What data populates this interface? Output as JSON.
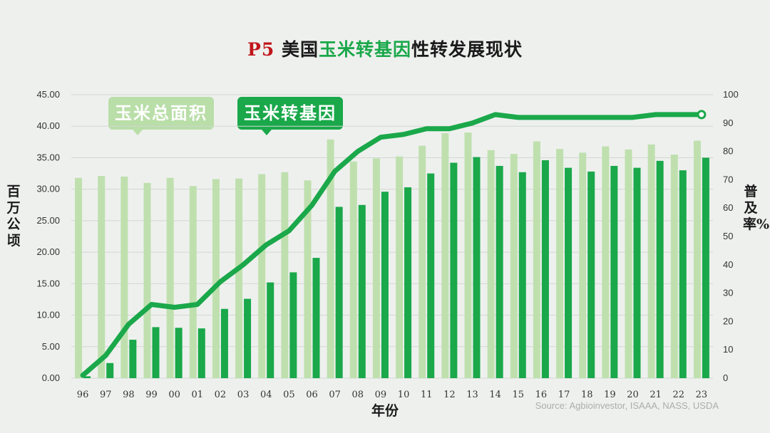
{
  "title": {
    "prefix": "P5",
    "part1": "美国",
    "highlight": "玉米转基因",
    "part2": "性转发展现状"
  },
  "legend": {
    "area_label": "玉米总面积",
    "gm_label": "玉米转基因"
  },
  "source": "Source:  Agbioinvestor, ISAAA, NASS, USDA",
  "chart_data": {
    "type": "bar",
    "title": "P5 美国玉米转基因性转发展现状",
    "xlabel": "年份",
    "ylabel": "百万公顷",
    "y2label": "普及率%",
    "ylim": [
      0,
      45
    ],
    "y2lim": [
      0,
      100
    ],
    "yticks": [
      "0.00",
      "5.00",
      "10.00",
      "15.00",
      "20.00",
      "25.00",
      "30.00",
      "35.00",
      "40.00",
      "45.00"
    ],
    "y2ticks": [
      "0",
      "10",
      "20",
      "30",
      "40",
      "50",
      "60",
      "70",
      "80",
      "90",
      "100"
    ],
    "categories": [
      "96",
      "97",
      "98",
      "99",
      "00",
      "01",
      "02",
      "03",
      "04",
      "05",
      "06",
      "07",
      "08",
      "09",
      "10",
      "11",
      "12",
      "13",
      "14",
      "15",
      "16",
      "17",
      "18",
      "19",
      "20",
      "21",
      "22",
      "23"
    ],
    "series": [
      {
        "name": "玉米总面积",
        "type": "bar",
        "axis": "left",
        "color": "#bfe0ae",
        "values": [
          31.8,
          32.1,
          32.0,
          31.0,
          31.8,
          30.5,
          31.6,
          31.7,
          32.4,
          32.7,
          31.4,
          37.9,
          34.4,
          34.9,
          35.2,
          36.9,
          38.9,
          39.0,
          36.2,
          35.6,
          37.6,
          36.4,
          35.8,
          36.8,
          36.3,
          37.1,
          35.5,
          37.7
        ]
      },
      {
        "name": "玉米转基因",
        "type": "bar",
        "axis": "left",
        "color": "#1aa84a",
        "values": [
          0.3,
          2.4,
          6.1,
          8.1,
          8.0,
          7.9,
          11.0,
          12.6,
          15.2,
          16.8,
          19.1,
          27.2,
          27.5,
          29.6,
          30.3,
          32.5,
          34.2,
          35.1,
          33.7,
          32.7,
          34.6,
          33.4,
          32.8,
          33.7,
          33.4,
          34.5,
          33.0,
          35.0
        ]
      },
      {
        "name": "普及率",
        "type": "line",
        "axis": "right",
        "color": "#1aa84a",
        "values": [
          1,
          8,
          19,
          26,
          25,
          26,
          34,
          40,
          47,
          52,
          61,
          73,
          80,
          85,
          86,
          88,
          88,
          90,
          93,
          92,
          92,
          92,
          92,
          92,
          92,
          93,
          93,
          93
        ]
      }
    ]
  }
}
